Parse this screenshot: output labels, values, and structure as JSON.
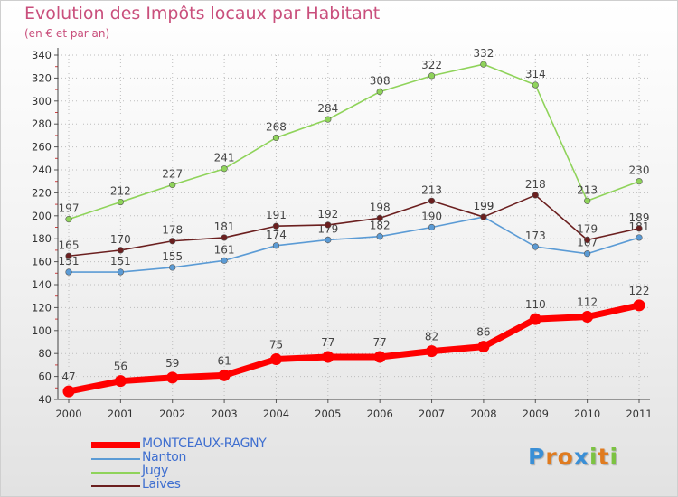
{
  "title": "Evolution des Impôts locaux par Habitant",
  "subtitle": "(en € et par an)",
  "logo": {
    "letters": [
      "P",
      "r",
      "o",
      "x",
      "i",
      "t",
      "i"
    ],
    "colors": [
      "#3a8fd6",
      "#e07b1f",
      "#e07b1f",
      "#3a8fd6",
      "#7cc242",
      "#e07b1f",
      "#7cc242"
    ]
  },
  "chart_data": {
    "type": "line",
    "x": [
      "2000",
      "2001",
      "2002",
      "2003",
      "2004",
      "2005",
      "2006",
      "2007",
      "2008",
      "2009",
      "2010",
      "2011"
    ],
    "ylim": [
      40,
      340
    ],
    "yticks": [
      40,
      60,
      80,
      100,
      120,
      140,
      160,
      180,
      200,
      220,
      240,
      260,
      280,
      300,
      320,
      340
    ],
    "grid": true,
    "legend_position": "bottom-left",
    "series": [
      {
        "name": "MONTCEAUX-RAGNY",
        "color": "#ff0000",
        "values": [
          47,
          56,
          59,
          61,
          75,
          77,
          77,
          82,
          86,
          110,
          112,
          122
        ]
      },
      {
        "name": "Nanton",
        "color": "#5b9bd5",
        "values": [
          151,
          151,
          155,
          161,
          174,
          179,
          182,
          190,
          199,
          173,
          167,
          181
        ]
      },
      {
        "name": "Jugy",
        "color": "#8fd35a",
        "values": [
          197,
          212,
          227,
          241,
          268,
          284,
          308,
          322,
          332,
          314,
          213,
          230
        ]
      },
      {
        "name": "Laives",
        "color": "#6b1f1f",
        "values": [
          165,
          170,
          178,
          181,
          191,
          192,
          198,
          213,
          199,
          218,
          179,
          189
        ]
      }
    ]
  }
}
